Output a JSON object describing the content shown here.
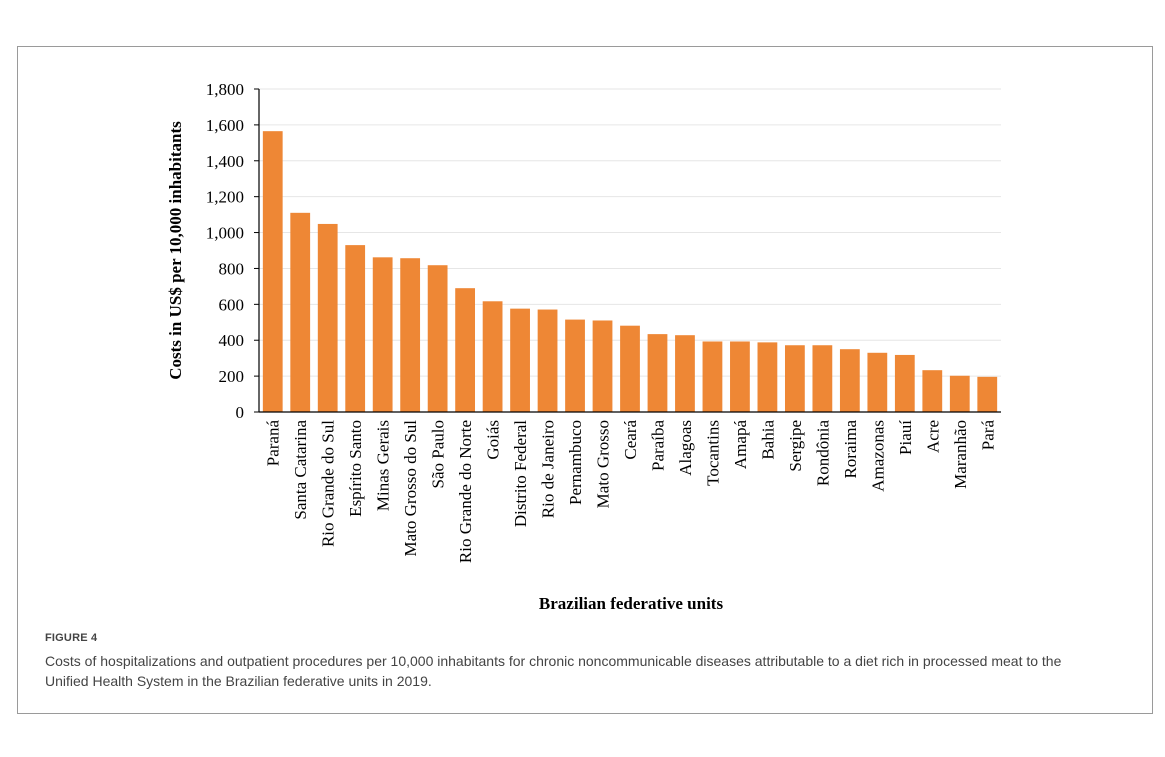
{
  "figure": {
    "label": "FIGURE 4",
    "caption": "Costs of hospitalizations and outpatient procedures per 10,000 inhabitants for chronic noncommunicable diseases attributable to a diet rich in processed meat to the Unified Health System in the Brazilian federative units in 2019."
  },
  "chart_data": {
    "type": "bar",
    "title": "",
    "xlabel": "Brazilian federative units",
    "ylabel": "Costs in US$ per 10,000 inhabitants",
    "ylim": [
      0,
      1800
    ],
    "yticks": [
      0,
      200,
      400,
      600,
      800,
      1000,
      1200,
      1400,
      1600,
      1800
    ],
    "ytick_labels": [
      "0",
      "200",
      "400",
      "600",
      "800",
      "1,000",
      "1,200",
      "1,400",
      "1,600",
      "1,800"
    ],
    "grid": true,
    "bar_color": "#EE8735",
    "categories": [
      "Paraná",
      "Santa Catarina",
      "Rio Grande do Sul",
      "Espírito Santo",
      "Minas Gerais",
      "Mato Grosso do Sul",
      "São Paulo",
      "Rio Grande do Norte",
      "Goiás",
      "Distrito Federal",
      "Rio de Janeiro",
      "Pernambuco",
      "Mato Grosso",
      "Ceará",
      "Paraíba",
      "Alagoas",
      "Tocantins",
      "Amapá",
      "Bahia",
      "Sergipe",
      "Rondônia",
      "Roraima",
      "Amazonas",
      "Piauí",
      "Acre",
      "Maranhão",
      "Pará"
    ],
    "values": [
      1565,
      1110,
      1048,
      930,
      862,
      857,
      818,
      690,
      617,
      576,
      571,
      515,
      510,
      481,
      434,
      428,
      393,
      393,
      388,
      372,
      372,
      350,
      330,
      318,
      233,
      202,
      196
    ]
  }
}
